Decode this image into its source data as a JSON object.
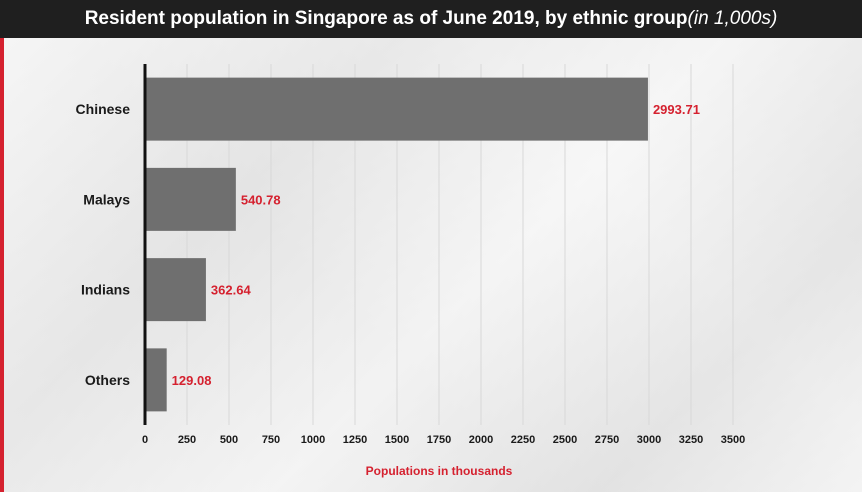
{
  "header": {
    "title": "Resident population in Singapore as of June 2019, by ethnic group",
    "subtitle": "(in 1,000s)"
  },
  "colors": {
    "bar": "#6f6f6f",
    "value_label": "#d5212f",
    "title_bg": "#1f1f1f",
    "accent": "#d5212f"
  },
  "chart_data": {
    "type": "bar",
    "orientation": "horizontal",
    "title": "Resident population in Singapore as of June 2019, by ethnic group",
    "subtitle": "(in 1,000s)",
    "categories": [
      "Chinese",
      "Malays",
      "Indians",
      "Others"
    ],
    "values": [
      2993.71,
      540.78,
      362.64,
      129.08
    ],
    "value_labels": [
      "2993.71",
      "540.78",
      "362.64",
      "129.08"
    ],
    "xlabel": "Populations in thousands",
    "ylabel": "",
    "xlim": [
      0,
      3500
    ],
    "xticks": [
      0,
      250,
      500,
      750,
      1000,
      1250,
      1500,
      1750,
      2000,
      2250,
      2500,
      2750,
      3000,
      3250,
      3500
    ],
    "grid": "vertical",
    "legend": "none"
  }
}
